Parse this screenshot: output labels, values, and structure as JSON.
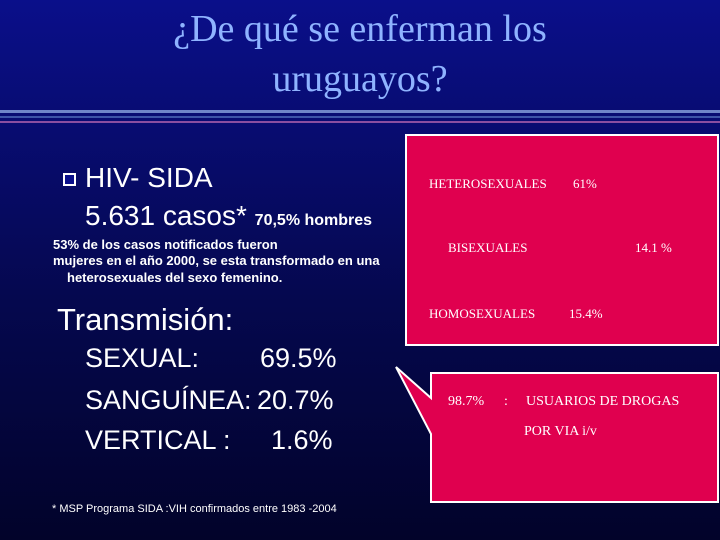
{
  "title": {
    "line1": "¿De qué se enferman los",
    "line2": "uruguayos?"
  },
  "hiv": {
    "heading": "HIV- SIDA",
    "cases": "5.631 casos*",
    "men": "70,5% hombres",
    "note_line1": "53% de los casos notificados fueron",
    "note_line2": "mujeres en el año 2000, se esta transformado en una",
    "note_line3": "heterosexuales del sexo femenino."
  },
  "transmission": {
    "heading": "Transmisión:",
    "rows": [
      {
        "label": "SEXUAL:",
        "value": "69.5%"
      },
      {
        "label": "SANGUÍNEA:",
        "value": "20.7%"
      },
      {
        "label": "VERTICAL :",
        "value": "1.6%"
      }
    ]
  },
  "footnote": "* MSP Programa SIDA :VIH confirmados entre 1983 -2004",
  "sexual_breakdown": {
    "heterosexuales": {
      "label": "HETEROSEXUALES",
      "value": "61%"
    },
    "bisexuales": {
      "label": "BISEXUALES",
      "value": "14.1 %"
    },
    "homosexuales": {
      "label": "HOMOSEXUALES",
      "value": "15.4%"
    }
  },
  "blood_breakdown": {
    "value": "98.7%",
    "separator": ":",
    "label_line1": "USUARIOS DE DROGAS",
    "label_line2": "POR VIA i/v"
  },
  "colors": {
    "accent": "#e0004f",
    "title": "#8fb3ff",
    "background": "#0a0f8a"
  }
}
